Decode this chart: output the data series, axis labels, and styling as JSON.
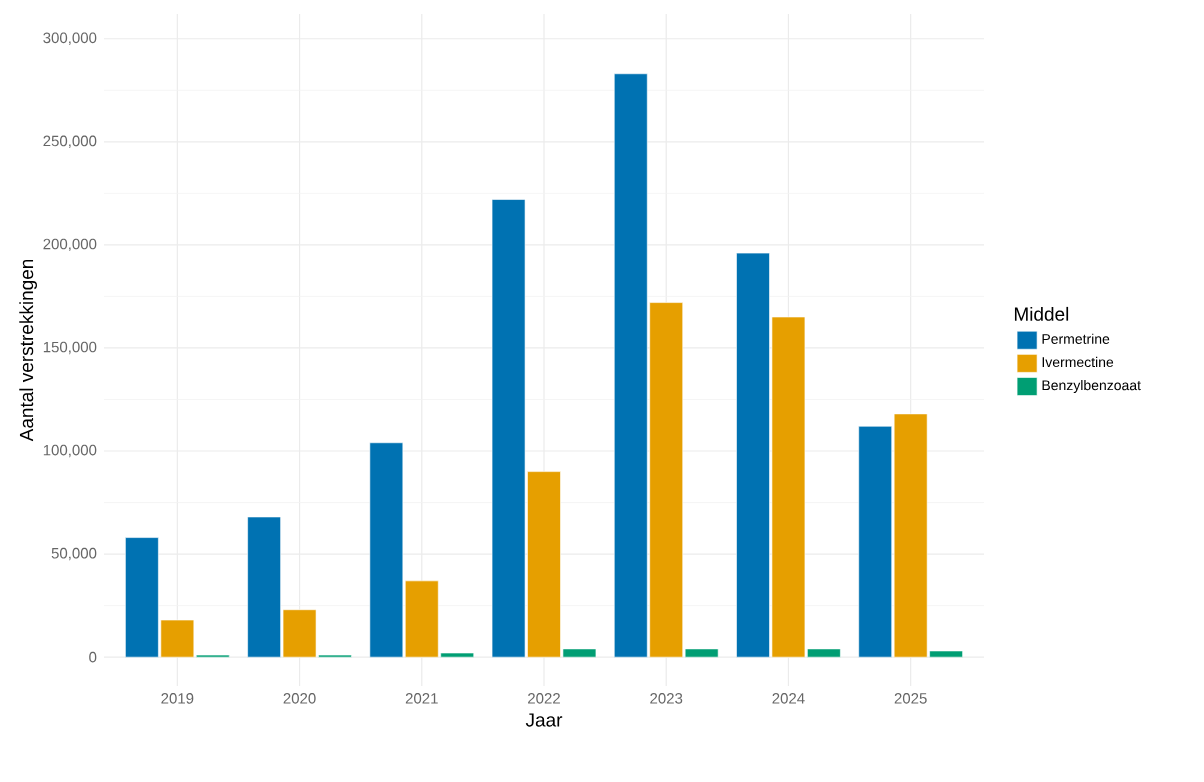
{
  "chart_data": {
    "type": "bar",
    "xlabel": "Jaar",
    "ylabel": "Aantal verstrekkingen",
    "legend_title": "Middel",
    "categories": [
      "2019",
      "2020",
      "2021",
      "2022",
      "2023",
      "2024",
      "2025"
    ],
    "series": [
      {
        "name": "Permetrine",
        "color": "#0072b2",
        "values": [
          58000,
          68000,
          104000,
          222000,
          283000,
          196000,
          112000
        ]
      },
      {
        "name": "Ivermectine",
        "color": "#e69f00",
        "values": [
          18000,
          23000,
          37000,
          90000,
          172000,
          165000,
          118000
        ]
      },
      {
        "name": "Benzylbenzoaat",
        "color": "#009e73",
        "values": [
          1000,
          1000,
          2000,
          4000,
          4000,
          4000,
          3000
        ]
      }
    ],
    "ylim": [
      -14000,
      312000
    ],
    "yticks": [
      {
        "value": 0,
        "label": "0"
      },
      {
        "value": 50000,
        "label": "50,000"
      },
      {
        "value": 100000,
        "label": "100,000"
      },
      {
        "value": 150000,
        "label": "150,000"
      },
      {
        "value": 200000,
        "label": "200,000"
      },
      {
        "value": 250000,
        "label": "250,000"
      },
      {
        "value": 300000,
        "label": "300,000"
      }
    ],
    "grid": true,
    "legend": "right"
  }
}
